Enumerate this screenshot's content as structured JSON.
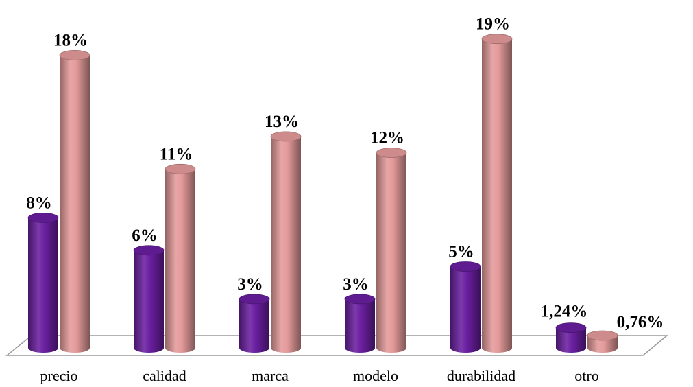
{
  "chart_data": {
    "type": "bar",
    "style": "3d-cylinder",
    "categories": [
      "precio",
      "calidad",
      "marca",
      "modelo",
      "durabilidad",
      "otro"
    ],
    "series": [
      {
        "color": "#6a1fa0",
        "values": [
          8,
          6,
          3,
          3,
          5,
          1.24
        ],
        "labels": [
          "8%",
          "6%",
          "3%",
          "3%",
          "5%",
          "1,24%"
        ]
      },
      {
        "color": "#e49a9a",
        "values": [
          18,
          11,
          13,
          12,
          19,
          0.76
        ],
        "labels": [
          "18%",
          "11%",
          "13%",
          "12%",
          "19%",
          "0,76%"
        ]
      }
    ],
    "ylim": [
      0,
      20
    ],
    "grid": false,
    "legend": "none"
  }
}
